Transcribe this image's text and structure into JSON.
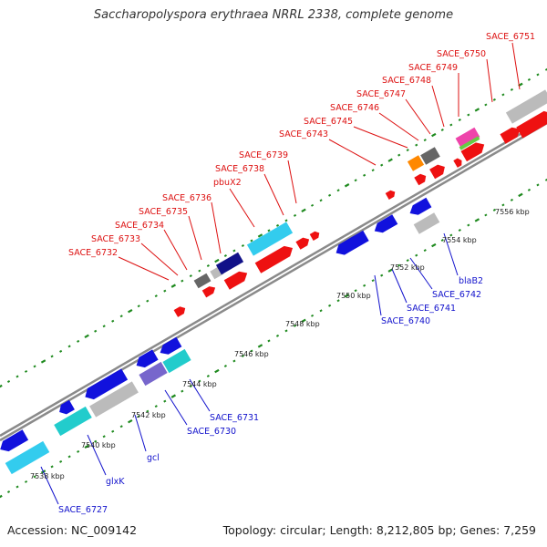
{
  "title": "Saccharopolyspora erythraea NRRL 2338, complete genome",
  "footer": {
    "accession": "Accession: NC_009142",
    "stats": "Topology: circular; Length: 8,212,805 bp; Genes: 7,259"
  },
  "colors": {
    "backbone": "#8a8a8a",
    "tick": "#1f8a1f",
    "forward_label": "#dd1111",
    "reverse_label": "#1111cc",
    "red": "#ee1111",
    "blue": "#1111dd",
    "navy": "#111188",
    "cyan": "#33ccee",
    "gray": "#bbbbbb",
    "darkgray": "#666666",
    "teal": "#22cccc",
    "purple": "#7766cc",
    "orange": "#ff8800"
  },
  "forward_labels": [
    "SACE_6732",
    "SACE_6733",
    "SACE_6734",
    "SACE_6735",
    "SACE_6736",
    "pbuX2",
    "SACE_6738",
    "SACE_6739",
    "SACE_6743",
    "SACE_6745",
    "SACE_6746",
    "SACE_6747",
    "SACE_6748",
    "SACE_6749",
    "SACE_6750",
    "SACE_6751"
  ],
  "reverse_labels": [
    "SACE_6727",
    "glxK",
    "gcl",
    "SACE_6730",
    "SACE_6731",
    "SACE_6740",
    "SACE_6741",
    "SACE_6742",
    "blaB2"
  ],
  "kbp_labels": [
    "7538 kbp",
    "7540 kbp",
    "7542 kbp",
    "7544 kbp",
    "7546 kbp",
    "7548 kbp",
    "7550 kbp",
    "7552 kbp",
    "7554 kbp",
    "7556 kbp"
  ]
}
